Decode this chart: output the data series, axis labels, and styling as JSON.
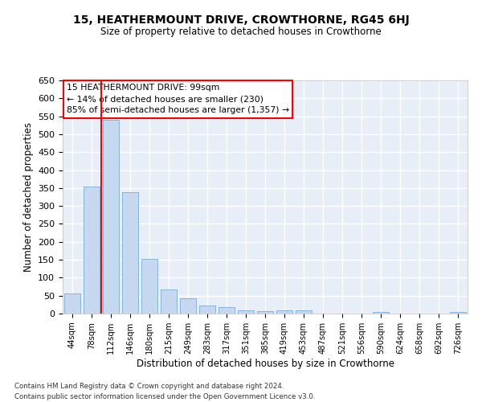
{
  "title": "15, HEATHERMOUNT DRIVE, CROWTHORNE, RG45 6HJ",
  "subtitle": "Size of property relative to detached houses in Crowthorne",
  "xlabel": "Distribution of detached houses by size in Crowthorne",
  "ylabel": "Number of detached properties",
  "bar_color": "#c5d8f0",
  "bar_edge_color": "#7aadd4",
  "background_color": "#e8eef8",
  "grid_color": "#ffffff",
  "categories": [
    "44sqm",
    "78sqm",
    "112sqm",
    "146sqm",
    "180sqm",
    "215sqm",
    "249sqm",
    "283sqm",
    "317sqm",
    "351sqm",
    "385sqm",
    "419sqm",
    "453sqm",
    "487sqm",
    "521sqm",
    "556sqm",
    "590sqm",
    "624sqm",
    "658sqm",
    "692sqm",
    "726sqm"
  ],
  "values": [
    55,
    355,
    540,
    338,
    152,
    68,
    42,
    23,
    18,
    10,
    6,
    8,
    9,
    0,
    0,
    0,
    5,
    0,
    0,
    0,
    5
  ],
  "ylim": [
    0,
    650
  ],
  "yticks": [
    0,
    50,
    100,
    150,
    200,
    250,
    300,
    350,
    400,
    450,
    500,
    550,
    600,
    650
  ],
  "red_line_x": 1.5,
  "annotation_title": "15 HEATHERMOUNT DRIVE: 99sqm",
  "annotation_line1": "← 14% of detached houses are smaller (230)",
  "annotation_line2": "85% of semi-detached houses are larger (1,357) →",
  "footer_line1": "Contains HM Land Registry data © Crown copyright and database right 2024.",
  "footer_line2": "Contains public sector information licensed under the Open Government Licence v3.0."
}
